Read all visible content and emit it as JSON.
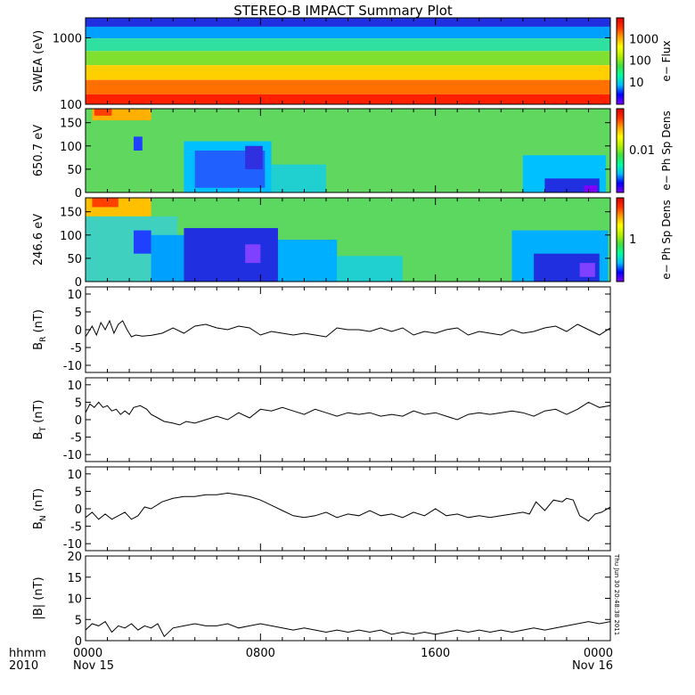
{
  "title": "STEREO-B IMPACT Summary Plot",
  "x_axis": {
    "row_label_top": "hhmm",
    "row_label_bottom": "2010",
    "ticks": [
      "0000",
      "0800",
      "1600",
      "0000"
    ],
    "date_labels": [
      "Nov 15",
      "",
      "",
      "Nov 16"
    ]
  },
  "timestamp": "Thu Jun 30 20:48:38 2011",
  "colorbar_colors": [
    "#7f00ff",
    "#0000ff",
    "#00bfff",
    "#00ffa0",
    "#40e040",
    "#b4f000",
    "#ffff00",
    "#ffa000",
    "#ff3000",
    "#e00000"
  ],
  "chart_data": [
    {
      "type": "heatmap",
      "ylabel": "SWEA (eV)",
      "yscale": "log",
      "ylim": [
        100,
        2000
      ],
      "yticks": [
        "100",
        "1000"
      ],
      "colorbar_label": "e− Flux",
      "colorbar_ticks": [
        "10",
        "100",
        "1000"
      ],
      "xlim_hours": [
        0,
        24
      ],
      "bands": [
        {
          "energy_ev": 1800,
          "color": "#2030e0"
        },
        {
          "energy_ev": 1200,
          "color": "#00a0ff"
        },
        {
          "energy_ev": 800,
          "color": "#30e0a0"
        },
        {
          "energy_ev": 500,
          "color": "#80e030"
        },
        {
          "energy_ev": 300,
          "color": "#ffd000"
        },
        {
          "energy_ev": 180,
          "color": "#ff7000"
        },
        {
          "energy_ev": 110,
          "color": "#ff2000"
        }
      ]
    },
    {
      "type": "heatmap",
      "ylabel": "650.7 eV",
      "ylim": [
        0,
        180
      ],
      "yticks": [
        "0",
        "50",
        "100",
        "150"
      ],
      "colorbar_label": "e− Ph Sp Dens",
      "colorbar_ticks": [
        "0.01"
      ],
      "xlim_hours": [
        0,
        24
      ],
      "background": "#60d860",
      "patches": [
        {
          "x0": 0.3,
          "x1": 3.0,
          "y0": 155,
          "y1": 180,
          "color": "#ffb000"
        },
        {
          "x0": 0.4,
          "x1": 1.2,
          "y0": 165,
          "y1": 180,
          "color": "#ff4000"
        },
        {
          "x0": 2.2,
          "x1": 2.6,
          "y0": 90,
          "y1": 120,
          "color": "#2040ff"
        },
        {
          "x0": 4.5,
          "x1": 8.5,
          "y0": 0,
          "y1": 110,
          "color": "#00c0ff"
        },
        {
          "x0": 5.0,
          "x1": 8.2,
          "y0": 10,
          "y1": 90,
          "color": "#2060ff"
        },
        {
          "x0": 7.3,
          "x1": 8.1,
          "y0": 50,
          "y1": 100,
          "color": "#3030e0"
        },
        {
          "x0": 8.5,
          "x1": 11.0,
          "y0": 0,
          "y1": 60,
          "color": "#20d0d0"
        },
        {
          "x0": 20.0,
          "x1": 23.8,
          "y0": 0,
          "y1": 80,
          "color": "#00c0ff"
        },
        {
          "x0": 21.0,
          "x1": 23.5,
          "y0": 0,
          "y1": 30,
          "color": "#2030e0"
        },
        {
          "x0": 22.8,
          "x1": 23.4,
          "y0": 0,
          "y1": 15,
          "color": "#8000ff"
        }
      ]
    },
    {
      "type": "heatmap",
      "ylabel": "246.6 eV",
      "ylim": [
        0,
        180
      ],
      "yticks": [
        "0",
        "50",
        "100",
        "150"
      ],
      "colorbar_label": "e− Ph Sp Dens",
      "colorbar_ticks": [
        "1"
      ],
      "xlim_hours": [
        0,
        24
      ],
      "background": "#5cd860",
      "patches": [
        {
          "x0": 0.0,
          "x1": 3.0,
          "y0": 140,
          "y1": 180,
          "color": "#ffc000"
        },
        {
          "x0": 0.3,
          "x1": 1.5,
          "y0": 160,
          "y1": 180,
          "color": "#ff4000"
        },
        {
          "x0": 0.0,
          "x1": 4.2,
          "y0": 0,
          "y1": 140,
          "color": "#40d0c0"
        },
        {
          "x0": 2.2,
          "x1": 3.0,
          "y0": 60,
          "y1": 110,
          "color": "#2040ff"
        },
        {
          "x0": 3.0,
          "x1": 4.5,
          "y0": 0,
          "y1": 100,
          "color": "#00a0ff"
        },
        {
          "x0": 4.5,
          "x1": 8.8,
          "y0": 0,
          "y1": 115,
          "color": "#2030e0"
        },
        {
          "x0": 7.3,
          "x1": 8.0,
          "y0": 40,
          "y1": 80,
          "color": "#8040ff"
        },
        {
          "x0": 8.8,
          "x1": 11.5,
          "y0": 0,
          "y1": 90,
          "color": "#00b0ff"
        },
        {
          "x0": 11.5,
          "x1": 14.5,
          "y0": 0,
          "y1": 55,
          "color": "#20d0d0"
        },
        {
          "x0": 19.5,
          "x1": 23.9,
          "y0": 0,
          "y1": 110,
          "color": "#00b0ff"
        },
        {
          "x0": 20.5,
          "x1": 23.5,
          "y0": 0,
          "y1": 60,
          "color": "#2030e0"
        },
        {
          "x0": 22.6,
          "x1": 23.3,
          "y0": 10,
          "y1": 40,
          "color": "#8040ff"
        }
      ]
    },
    {
      "type": "line",
      "ylabel": "B",
      "ylabel_sub": "R",
      "ylabel_unit": " (nT)",
      "ylim": [
        -12,
        12
      ],
      "yticks": [
        -10,
        -5,
        0,
        5,
        10
      ],
      "xlim_hours": [
        0,
        24
      ],
      "x": [
        0,
        0.3,
        0.5,
        0.7,
        0.9,
        1.1,
        1.3,
        1.5,
        1.7,
        1.9,
        2.1,
        2.3,
        2.6,
        3.0,
        3.5,
        4.0,
        4.5,
        5.0,
        5.5,
        6.0,
        6.5,
        7.0,
        7.5,
        8.0,
        8.5,
        9.0,
        9.5,
        10.0,
        10.5,
        11.0,
        11.5,
        12.0,
        12.5,
        13.0,
        13.5,
        14.0,
        14.5,
        15.0,
        15.5,
        16.0,
        16.5,
        17.0,
        17.5,
        18.0,
        18.5,
        19.0,
        19.5,
        20.0,
        20.5,
        21.0,
        21.5,
        22.0,
        22.5,
        23.0,
        23.5,
        24.0
      ],
      "y": [
        -2,
        1,
        -1.5,
        2,
        0,
        2.5,
        -1,
        1.5,
        2.5,
        0,
        -2,
        -1.5,
        -1.8,
        -1.6,
        -1,
        0.5,
        -1,
        1,
        1.5,
        0.5,
        0,
        1,
        0.5,
        -1.5,
        -0.5,
        -1,
        -1.5,
        -1,
        -1.5,
        -2,
        0.5,
        0,
        0,
        -0.5,
        0.5,
        -0.5,
        0.5,
        -1.5,
        -0.5,
        -1,
        0,
        0.5,
        -1.5,
        -0.5,
        -1,
        -1.5,
        0,
        -1,
        -0.5,
        0.5,
        1,
        -0.5,
        1.5,
        0,
        -1.5,
        0.5
      ]
    },
    {
      "type": "line",
      "ylabel": "B",
      "ylabel_sub": "T",
      "ylabel_unit": " (nT)",
      "ylim": [
        -12,
        12
      ],
      "yticks": [
        -10,
        -5,
        0,
        5,
        10
      ],
      "xlim_hours": [
        0,
        24
      ],
      "x": [
        0,
        0.2,
        0.4,
        0.6,
        0.8,
        1.0,
        1.2,
        1.4,
        1.6,
        1.8,
        2.0,
        2.2,
        2.5,
        2.8,
        3.0,
        3.3,
        3.6,
        4.0,
        4.3,
        4.6,
        5.0,
        5.5,
        6.0,
        6.5,
        7.0,
        7.5,
        8.0,
        8.5,
        9.0,
        9.5,
        10.0,
        10.5,
        11.0,
        11.5,
        12.0,
        12.5,
        13.0,
        13.5,
        14.0,
        14.5,
        15.0,
        15.5,
        16.0,
        16.5,
        17.0,
        17.5,
        18.0,
        18.5,
        19.0,
        19.5,
        20.0,
        20.5,
        21.0,
        21.5,
        22.0,
        22.5,
        23.0,
        23.5,
        24.0
      ],
      "y": [
        2,
        4.5,
        3.5,
        5,
        3.5,
        4,
        2.5,
        3,
        1.5,
        2.5,
        1.5,
        3.5,
        4,
        3,
        1.5,
        0.5,
        -0.5,
        -1,
        -1.5,
        -0.5,
        -1,
        0,
        1,
        0,
        2,
        0.5,
        3,
        2.5,
        3.5,
        2.5,
        1.5,
        3,
        2,
        1,
        2,
        1.5,
        2,
        1,
        1.5,
        1,
        2.5,
        1.5,
        2,
        1,
        0,
        1.5,
        2,
        1.5,
        2,
        2.5,
        2,
        1,
        2.5,
        3,
        1.5,
        3,
        5,
        3.5,
        4
      ]
    },
    {
      "type": "line",
      "ylabel": "B",
      "ylabel_sub": "N",
      "ylabel_unit": " (nT)",
      "ylim": [
        -12,
        12
      ],
      "yticks": [
        -10,
        -5,
        0,
        5,
        10
      ],
      "xlim_hours": [
        0,
        24
      ],
      "x": [
        0,
        0.3,
        0.6,
        0.9,
        1.2,
        1.5,
        1.8,
        2.1,
        2.4,
        2.7,
        3.0,
        3.5,
        4.0,
        4.5,
        5.0,
        5.5,
        6.0,
        6.5,
        7.0,
        7.5,
        8.0,
        8.5,
        9.0,
        9.5,
        10.0,
        10.5,
        11.0,
        11.5,
        12.0,
        12.5,
        13.0,
        13.5,
        14.0,
        14.5,
        15.0,
        15.5,
        16.0,
        16.5,
        17.0,
        17.5,
        18.0,
        18.5,
        19.0,
        19.5,
        20.0,
        20.3,
        20.6,
        21.0,
        21.4,
        21.8,
        22.0,
        22.3,
        22.6,
        23.0,
        23.3,
        23.6,
        24.0
      ],
      "y": [
        -2.5,
        -1,
        -3,
        -1.5,
        -3,
        -2,
        -1,
        -3,
        -2,
        0.5,
        0,
        2,
        3,
        3.5,
        3.5,
        4,
        4,
        4.5,
        4,
        3.5,
        2.5,
        1,
        -0.5,
        -2,
        -2.5,
        -2,
        -1,
        -2.5,
        -1.5,
        -2,
        -0.5,
        -2,
        -1.5,
        -2.5,
        -1,
        -2,
        0,
        -2,
        -1.5,
        -2.5,
        -2,
        -2.5,
        -2,
        -1.5,
        -1,
        -1.5,
        2,
        -0.5,
        2.5,
        2,
        3,
        2.5,
        -2,
        -3.5,
        -1.5,
        -1,
        0.5
      ]
    },
    {
      "type": "line",
      "ylabel": "|B| (nT)",
      "ylabel_sub": "",
      "ylabel_unit": "",
      "ylim": [
        0,
        20
      ],
      "yticks": [
        0,
        5,
        10,
        15,
        20
      ],
      "xlim_hours": [
        0,
        24
      ],
      "x": [
        0,
        0.3,
        0.6,
        0.9,
        1.2,
        1.5,
        1.8,
        2.1,
        2.4,
        2.7,
        3.0,
        3.3,
        3.6,
        4.0,
        4.5,
        5.0,
        5.5,
        6.0,
        6.5,
        7.0,
        7.5,
        8.0,
        8.5,
        9.0,
        9.5,
        10.0,
        10.5,
        11.0,
        11.5,
        12.0,
        12.5,
        13.0,
        13.5,
        14.0,
        14.5,
        15.0,
        15.5,
        16.0,
        16.5,
        17.0,
        17.5,
        18.0,
        18.5,
        19.0,
        19.5,
        20.0,
        20.5,
        21.0,
        21.5,
        22.0,
        22.5,
        23.0,
        23.5,
        24.0
      ],
      "y": [
        2.5,
        4,
        3.5,
        4.5,
        2,
        3.5,
        3,
        4,
        2.5,
        3.5,
        3,
        4,
        1,
        3,
        3.5,
        4,
        3.5,
        3.5,
        4,
        3,
        3.5,
        4,
        3.5,
        3,
        2.5,
        3,
        2.5,
        2,
        2.5,
        2,
        2.5,
        2,
        2.5,
        1.5,
        2,
        1.5,
        2,
        1.5,
        2,
        2.5,
        2,
        2.5,
        2,
        2.5,
        2,
        2.5,
        3,
        2.5,
        3,
        3.5,
        4,
        4.5,
        4,
        4.5
      ]
    }
  ]
}
